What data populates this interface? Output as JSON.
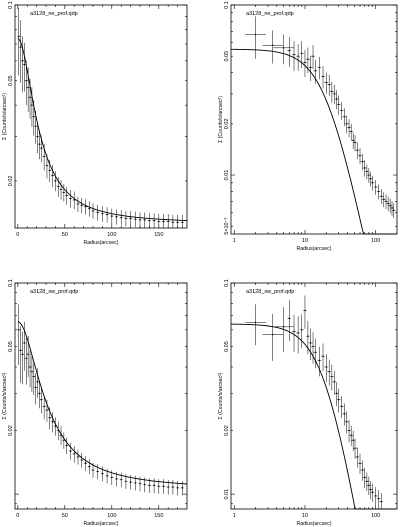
{
  "chart_data": [
    {
      "type": "scatter",
      "title": "a3128_ne_prof.qdp",
      "xlabel": "Radius(arcsec)",
      "ylabel": "Σ (Counts/s/arcsec²)",
      "xscale": "linear",
      "yscale": "log",
      "xlim": [
        -3,
        180
      ],
      "ylim": [
        0.013,
        0.1
      ],
      "xticks": [
        "0",
        "50",
        "100",
        "150"
      ],
      "yticks": [
        {
          "value": 0.02,
          "label": "0.02"
        },
        {
          "value": 0.05,
          "label": "0.05"
        },
        {
          "value": 0.1,
          "label": "0.1"
        }
      ],
      "model": {
        "kind": "beta",
        "s0": 0.06,
        "rc": 15,
        "bkg": 0.0135
      },
      "series": [
        {
          "x": [
            1,
            3,
            5,
            7,
            9,
            11,
            13,
            15,
            17,
            19,
            21,
            23,
            25,
            28,
            31,
            34,
            37,
            40,
            43,
            46,
            49,
            52,
            56,
            60,
            64,
            68,
            72,
            76,
            80,
            85,
            90,
            95,
            100,
            105,
            110,
            115,
            120,
            125,
            130,
            135,
            140,
            145,
            150,
            155,
            160,
            165,
            170,
            175
          ],
          "y": [
            0.075,
            0.068,
            0.06,
            0.058,
            0.05,
            0.047,
            0.043,
            0.04,
            0.036,
            0.033,
            0.03,
            0.028,
            0.027,
            0.025,
            0.023,
            0.022,
            0.021,
            0.02,
            0.019,
            0.0185,
            0.018,
            0.0175,
            0.017,
            0.0168,
            0.0162,
            0.016,
            0.0158,
            0.0155,
            0.0152,
            0.015,
            0.0148,
            0.0147,
            0.0145,
            0.0144,
            0.0143,
            0.0142,
            0.0142,
            0.0141,
            0.014,
            0.014,
            0.0139,
            0.0139,
            0.0138,
            0.0138,
            0.0138,
            0.0137,
            0.0137,
            0.0137
          ],
          "dy_frac": [
            0.3,
            0.28,
            0.25,
            0.22,
            0.2,
            0.2,
            0.18,
            0.18,
            0.16,
            0.15,
            0.14,
            0.13,
            0.12,
            0.12,
            0.11,
            0.1,
            0.1,
            0.09,
            0.09,
            0.09,
            0.08,
            0.08,
            0.08,
            0.08,
            0.07,
            0.07,
            0.07,
            0.07,
            0.07,
            0.07,
            0.07,
            0.07,
            0.07,
            0.07,
            0.07,
            0.07,
            0.07,
            0.07,
            0.07,
            0.07,
            0.07,
            0.07,
            0.07,
            0.07,
            0.07,
            0.07,
            0.07,
            0.07
          ]
        }
      ]
    },
    {
      "type": "scatter",
      "title": "a3128_ne_prof.qdp",
      "xlabel": "Radius(arcsec)",
      "ylabel": "Σ (Counts/s/arcsec²)",
      "xscale": "log",
      "yscale": "log",
      "xlim": [
        0.9,
        200
      ],
      "ylim": [
        0.0045,
        0.1
      ],
      "xticks": [
        {
          "value": 1,
          "label": "1"
        },
        {
          "value": 10,
          "label": "10"
        },
        {
          "value": 100,
          "label": "100"
        }
      ],
      "yticks": [
        {
          "value": 0.005,
          "label": "5×10⁻³"
        },
        {
          "value": 0.01,
          "label": "0.01"
        },
        {
          "value": 0.02,
          "label": "0.02"
        },
        {
          "value": 0.05,
          "label": "0.05"
        },
        {
          "value": 0.1,
          "label": "0.1"
        }
      ],
      "model": {
        "kind": "beta",
        "s0": 0.055,
        "rc": 20,
        "bkg": 0
      },
      "series": [
        {
          "x": [
            2,
            3.5,
            5,
            6,
            7,
            8,
            9,
            10,
            11,
            12,
            13,
            14,
            16,
            18,
            20,
            22,
            24,
            26,
            28,
            30,
            33,
            36,
            39,
            42,
            45,
            48,
            51,
            55,
            60,
            65,
            70,
            75,
            80,
            85,
            90,
            100,
            110,
            120,
            130,
            140,
            150,
            160,
            170,
            180
          ],
          "y": [
            0.067,
            0.058,
            0.056,
            0.054,
            0.051,
            0.05,
            0.052,
            0.046,
            0.048,
            0.043,
            0.05,
            0.041,
            0.043,
            0.038,
            0.035,
            0.034,
            0.031,
            0.03,
            0.028,
            0.026,
            0.024,
            0.022,
            0.02,
            0.019,
            0.018,
            0.016,
            0.0155,
            0.014,
            0.013,
            0.012,
            0.011,
            0.0105,
            0.01,
            0.0095,
            0.009,
            0.0085,
            0.008,
            0.0075,
            0.0072,
            0.007,
            0.0068,
            0.0066,
            0.0064,
            0.0062
          ],
          "dy_frac": [
            0.28,
            0.22,
            0.2,
            0.2,
            0.2,
            0.18,
            0.18,
            0.18,
            0.17,
            0.17,
            0.16,
            0.16,
            0.15,
            0.15,
            0.14,
            0.14,
            0.14,
            0.13,
            0.13,
            0.13,
            0.12,
            0.12,
            0.12,
            0.12,
            0.11,
            0.11,
            0.11,
            0.11,
            0.11,
            0.11,
            0.11,
            0.1,
            0.1,
            0.1,
            0.1,
            0.1,
            0.1,
            0.1,
            0.1,
            0.1,
            0.1,
            0.1,
            0.1,
            0.1
          ]
        }
      ]
    },
    {
      "type": "scatter",
      "title": "a3128_sw_prof.qdp",
      "xlabel": "Radius(arcsec)",
      "ylabel": "Σ (Counts/s/arcsec²)",
      "xscale": "linear",
      "yscale": "log",
      "xlim": [
        -3,
        180
      ],
      "ylim": [
        0.0085,
        0.1
      ],
      "xticks": [
        "0",
        "50",
        "100",
        "150"
      ],
      "yticks": [
        {
          "value": 0.02,
          "label": "0.02"
        },
        {
          "value": 0.05,
          "label": "0.05"
        },
        {
          "value": 0.1,
          "label": "0.1"
        }
      ],
      "model": {
        "kind": "beta",
        "s0": 0.055,
        "rc": 20,
        "bkg": 0.0105
      },
      "series": [
        {
          "x": [
            1,
            3,
            5,
            7,
            9,
            11,
            13,
            15,
            17,
            19,
            21,
            23,
            25,
            28,
            31,
            34,
            37,
            40,
            43,
            46,
            49,
            52,
            56,
            60,
            64,
            68,
            72,
            76,
            80,
            85,
            90,
            95,
            100,
            105,
            110,
            115,
            120,
            125,
            130,
            135,
            140,
            145,
            150,
            155,
            160,
            165,
            170,
            175
          ],
          "y": [
            0.06,
            0.048,
            0.046,
            0.052,
            0.044,
            0.046,
            0.04,
            0.038,
            0.036,
            0.032,
            0.034,
            0.03,
            0.028,
            0.026,
            0.025,
            0.023,
            0.022,
            0.021,
            0.02,
            0.019,
            0.018,
            0.017,
            0.016,
            0.0155,
            0.015,
            0.0145,
            0.014,
            0.0135,
            0.013,
            0.0128,
            0.0125,
            0.0122,
            0.012,
            0.0118,
            0.0117,
            0.0115,
            0.0114,
            0.0113,
            0.0112,
            0.0111,
            0.011,
            0.011,
            0.0109,
            0.0109,
            0.0108,
            0.0108,
            0.0107,
            0.0107
          ],
          "dy_frac": [
            0.32,
            0.3,
            0.28,
            0.26,
            0.25,
            0.22,
            0.2,
            0.2,
            0.18,
            0.17,
            0.16,
            0.15,
            0.14,
            0.13,
            0.12,
            0.12,
            0.11,
            0.1,
            0.1,
            0.1,
            0.09,
            0.09,
            0.09,
            0.09,
            0.08,
            0.08,
            0.08,
            0.08,
            0.08,
            0.08,
            0.08,
            0.08,
            0.08,
            0.08,
            0.08,
            0.08,
            0.08,
            0.08,
            0.08,
            0.08,
            0.08,
            0.08,
            0.08,
            0.08,
            0.08,
            0.08,
            0.08,
            0.08
          ]
        }
      ]
    },
    {
      "type": "scatter",
      "title": "a3128_sw_prof.qdp",
      "xlabel": "Radius(arcsec)",
      "ylabel": "Σ (Counts/s/arcsec²)",
      "xscale": "log",
      "yscale": "log",
      "xlim": [
        0.9,
        200
      ],
      "ylim": [
        0.0085,
        0.1
      ],
      "xticks": [
        {
          "value": 1,
          "label": "1"
        },
        {
          "value": 10,
          "label": "10"
        },
        {
          "value": 100,
          "label": "100"
        }
      ],
      "yticks": [
        {
          "value": 0.01,
          "label": "0.01"
        },
        {
          "value": 0.02,
          "label": "0.02"
        },
        {
          "value": 0.05,
          "label": "0.05"
        },
        {
          "value": 0.1,
          "label": "0.1"
        }
      ],
      "model": {
        "kind": "beta",
        "s0": 0.064,
        "rc": 20,
        "bkg": 0
      },
      "series": [
        {
          "x": [
            2,
            3.5,
            5,
            6,
            7,
            8,
            9,
            10,
            11,
            12,
            13,
            14,
            16,
            18,
            20,
            22,
            24,
            26,
            28,
            30,
            33,
            36,
            39,
            42,
            45,
            48,
            51,
            55,
            60,
            65,
            70,
            75,
            80,
            85,
            90,
            100,
            110,
            120
          ],
          "y": [
            0.065,
            0.057,
            0.062,
            0.068,
            0.059,
            0.058,
            0.06,
            0.074,
            0.056,
            0.052,
            0.05,
            0.047,
            0.043,
            0.045,
            0.04,
            0.038,
            0.036,
            0.034,
            0.03,
            0.028,
            0.026,
            0.024,
            0.022,
            0.02,
            0.019,
            0.018,
            0.0165,
            0.015,
            0.014,
            0.013,
            0.012,
            0.0115,
            0.011,
            0.0105,
            0.0102,
            0.0098,
            0.0095,
            0.0092
          ],
          "dy_frac": [
            0.22,
            0.25,
            0.24,
            0.22,
            0.2,
            0.2,
            0.18,
            0.18,
            0.18,
            0.17,
            0.17,
            0.16,
            0.16,
            0.15,
            0.15,
            0.14,
            0.14,
            0.13,
            0.13,
            0.13,
            0.12,
            0.12,
            0.12,
            0.12,
            0.11,
            0.11,
            0.11,
            0.11,
            0.11,
            0.11,
            0.11,
            0.1,
            0.1,
            0.1,
            0.1,
            0.1,
            0.1,
            0.1
          ]
        }
      ]
    }
  ]
}
